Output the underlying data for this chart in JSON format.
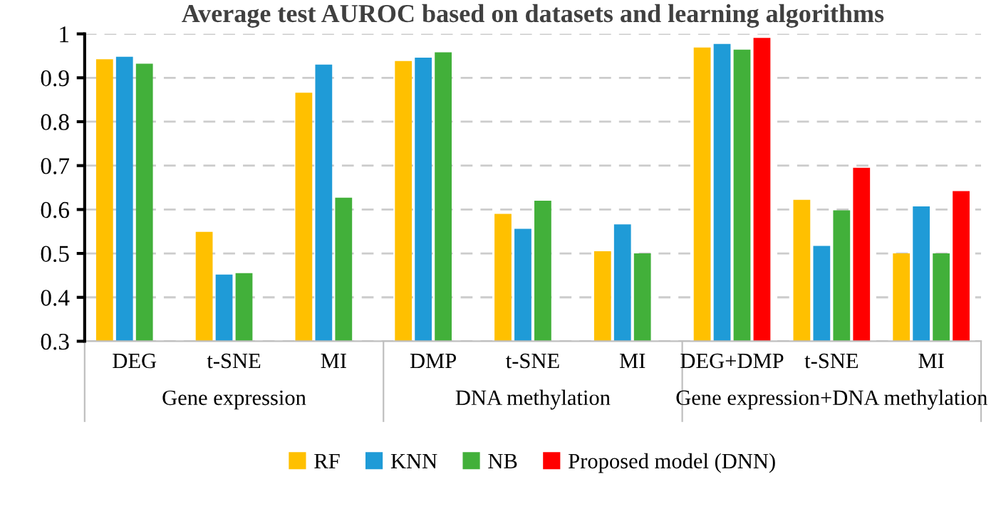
{
  "chart_data": {
    "type": "bar",
    "title": "Average test AUROC based on datasets and learning algorithms",
    "categories": [
      "DEG",
      "t-SNE",
      "MI",
      "DMP",
      "t-SNE",
      "MI",
      "DEG+DMP",
      "t-SNE",
      "MI"
    ],
    "series": [
      {
        "name": "RF",
        "color": "#ffc000",
        "values": [
          0.942,
          0.549,
          0.866,
          0.938,
          0.59,
          0.505,
          0.969,
          0.622,
          0.5
        ]
      },
      {
        "name": "KNN",
        "color": "#1f9bd7",
        "values": [
          0.948,
          0.452,
          0.93,
          0.946,
          0.556,
          0.566,
          0.977,
          0.517,
          0.607
        ]
      },
      {
        "name": "NB",
        "color": "#42b03a",
        "values": [
          0.932,
          0.455,
          0.627,
          0.958,
          0.62,
          0.5,
          0.964,
          0.598,
          0.5
        ]
      },
      {
        "name": "Proposed model (DNN)",
        "color": "#ff0000",
        "values": [
          null,
          null,
          null,
          null,
          null,
          null,
          0.991,
          0.695,
          0.642
        ]
      }
    ],
    "annotations": [
      "Gene expression",
      "DNA methylation",
      "Gene expression+DNA methylation"
    ],
    "ylim": [
      0.3,
      1
    ],
    "yticks": [
      0.3,
      0.4,
      0.5,
      0.6,
      0.7,
      0.8,
      0.9,
      1
    ],
    "grid": "y",
    "legend": "bottom"
  }
}
